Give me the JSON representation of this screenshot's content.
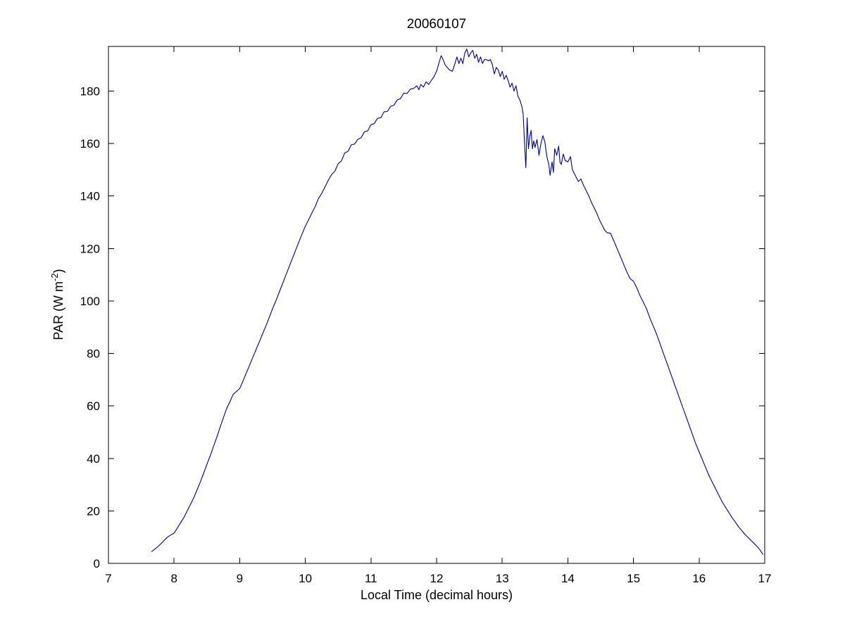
{
  "figure": {
    "title": "20060107",
    "background_color": "#ffffff",
    "axis_color": "#000000"
  },
  "chart_data": {
    "type": "line",
    "title": "20060107",
    "xlabel": "Local Time (decimal hours)",
    "ylabel": "PAR (W m^-2)",
    "ylabel_pre": "PAR (W m",
    "ylabel_sup": "-2",
    "ylabel_post": ")",
    "xlim": [
      7,
      17
    ],
    "ylim": [
      0,
      197
    ],
    "xticks": [
      7,
      8,
      9,
      10,
      11,
      12,
      13,
      14,
      15,
      16,
      17
    ],
    "yticks": [
      0,
      20,
      40,
      60,
      80,
      100,
      120,
      140,
      160,
      180
    ],
    "grid": false,
    "legend_position": "none",
    "line_color": "#00008B",
    "series": [
      {
        "name": "PAR",
        "points": [
          [
            7.66,
            4.5
          ],
          [
            7.7,
            5.3
          ],
          [
            7.75,
            6.3
          ],
          [
            7.8,
            7.5
          ],
          [
            7.85,
            8.8
          ],
          [
            7.9,
            10.0
          ],
          [
            7.95,
            10.8
          ],
          [
            8.0,
            11.5
          ],
          [
            8.05,
            13.5
          ],
          [
            8.1,
            15.5
          ],
          [
            8.15,
            17.5
          ],
          [
            8.2,
            20.0
          ],
          [
            8.25,
            22.5
          ],
          [
            8.3,
            25.0
          ],
          [
            8.35,
            28.0
          ],
          [
            8.4,
            31.0
          ],
          [
            8.45,
            34.3
          ],
          [
            8.5,
            37.7
          ],
          [
            8.55,
            41.0
          ],
          [
            8.6,
            44.5
          ],
          [
            8.65,
            48.0
          ],
          [
            8.7,
            51.7
          ],
          [
            8.75,
            55.4
          ],
          [
            8.8,
            59.0
          ],
          [
            8.85,
            61.5
          ],
          [
            8.9,
            64.4
          ],
          [
            8.95,
            65.5
          ],
          [
            9.0,
            66.6
          ],
          [
            9.05,
            69.5
          ],
          [
            9.1,
            72.5
          ],
          [
            9.15,
            75.5
          ],
          [
            9.2,
            78.5
          ],
          [
            9.25,
            81.5
          ],
          [
            9.3,
            84.5
          ],
          [
            9.35,
            87.5
          ],
          [
            9.4,
            90.5
          ],
          [
            9.45,
            93.7
          ],
          [
            9.5,
            97.0
          ],
          [
            9.55,
            100.0
          ],
          [
            9.6,
            103.2
          ],
          [
            9.65,
            106.4
          ],
          [
            9.7,
            109.6
          ],
          [
            9.75,
            112.8
          ],
          [
            9.8,
            116.0
          ],
          [
            9.85,
            119.2
          ],
          [
            9.9,
            122.4
          ],
          [
            9.95,
            125.5
          ],
          [
            10.0,
            128.5
          ],
          [
            10.05,
            131.0
          ],
          [
            10.1,
            133.5
          ],
          [
            10.15,
            136.0
          ],
          [
            10.2,
            139.0
          ],
          [
            10.25,
            141.0
          ],
          [
            10.3,
            143.5
          ],
          [
            10.35,
            146.0
          ],
          [
            10.4,
            148.2
          ],
          [
            10.45,
            149.4
          ],
          [
            10.5,
            152.3
          ],
          [
            10.55,
            153.4
          ],
          [
            10.6,
            156.4
          ],
          [
            10.65,
            157.0
          ],
          [
            10.7,
            159.5
          ],
          [
            10.75,
            159.8
          ],
          [
            10.8,
            161.6
          ],
          [
            10.85,
            162.2
          ],
          [
            10.9,
            164.5
          ],
          [
            10.95,
            164.8
          ],
          [
            11.0,
            167.2
          ],
          [
            11.05,
            167.6
          ],
          [
            11.1,
            169.6
          ],
          [
            11.15,
            169.8
          ],
          [
            11.2,
            172.1
          ],
          [
            11.25,
            172.2
          ],
          [
            11.3,
            174.2
          ],
          [
            11.35,
            174.6
          ],
          [
            11.4,
            176.6
          ],
          [
            11.45,
            177.1
          ],
          [
            11.5,
            179.2
          ],
          [
            11.55,
            179.1
          ],
          [
            11.6,
            180.7
          ],
          [
            11.65,
            181.0
          ],
          [
            11.7,
            182.0
          ],
          [
            11.73,
            180.5
          ],
          [
            11.76,
            182.5
          ],
          [
            11.8,
            181.5
          ],
          [
            11.84,
            183.5
          ],
          [
            11.88,
            182.5
          ],
          [
            11.92,
            184.0
          ],
          [
            11.96,
            185.5
          ],
          [
            12.0,
            187.5
          ],
          [
            12.04,
            191.0
          ],
          [
            12.07,
            193.5
          ],
          [
            12.1,
            192.0
          ],
          [
            12.13,
            190.0
          ],
          [
            12.16,
            189.0
          ],
          [
            12.2,
            188.0
          ],
          [
            12.24,
            187.5
          ],
          [
            12.28,
            190.5
          ],
          [
            12.31,
            193.0
          ],
          [
            12.34,
            190.5
          ],
          [
            12.37,
            192.5
          ],
          [
            12.4,
            190.5
          ],
          [
            12.43,
            194.5
          ],
          [
            12.46,
            196.0
          ],
          [
            12.49,
            193.0
          ],
          [
            12.52,
            194.5
          ],
          [
            12.55,
            195.5
          ],
          [
            12.58,
            192.5
          ],
          [
            12.61,
            194.0
          ],
          [
            12.64,
            191.0
          ],
          [
            12.67,
            193.0
          ],
          [
            12.7,
            190.5
          ],
          [
            12.73,
            192.0
          ],
          [
            12.76,
            192.0
          ],
          [
            12.79,
            191.5
          ],
          [
            12.82,
            192.0
          ],
          [
            12.85,
            190.0
          ],
          [
            12.88,
            186.5
          ],
          [
            12.91,
            189.0
          ],
          [
            12.94,
            188.0
          ],
          [
            12.97,
            185.5
          ],
          [
            13.0,
            187.5
          ],
          [
            13.03,
            184.5
          ],
          [
            13.06,
            186.0
          ],
          [
            13.09,
            184.0
          ],
          [
            13.12,
            181.5
          ],
          [
            13.15,
            183.0
          ],
          [
            13.18,
            180.0
          ],
          [
            13.21,
            182.0
          ],
          [
            13.24,
            178.0
          ],
          [
            13.27,
            176.5
          ],
          [
            13.3,
            174.0
          ],
          [
            13.32,
            171.0
          ],
          [
            13.34,
            160.0
          ],
          [
            13.36,
            150.8
          ],
          [
            13.38,
            169.8
          ],
          [
            13.4,
            158.0
          ],
          [
            13.42,
            162.6
          ],
          [
            13.44,
            165.0
          ],
          [
            13.46,
            158.0
          ],
          [
            13.48,
            161.0
          ],
          [
            13.5,
            158.5
          ],
          [
            13.53,
            161.5
          ],
          [
            13.56,
            155.5
          ],
          [
            13.59,
            160.0
          ],
          [
            13.62,
            163.0
          ],
          [
            13.65,
            160.5
          ],
          [
            13.68,
            155.0
          ],
          [
            13.71,
            152.0
          ],
          [
            13.73,
            147.9
          ],
          [
            13.76,
            153.0
          ],
          [
            13.78,
            149.0
          ],
          [
            13.8,
            158.0
          ],
          [
            13.83,
            155.5
          ],
          [
            13.86,
            159.0
          ],
          [
            13.88,
            153.0
          ],
          [
            13.9,
            152.0
          ],
          [
            13.93,
            156.0
          ],
          [
            13.96,
            153.5
          ],
          [
            14.0,
            153.0
          ],
          [
            14.04,
            155.0
          ],
          [
            14.07,
            150.0
          ],
          [
            14.1,
            148.5
          ],
          [
            14.13,
            147.0
          ],
          [
            14.16,
            145.5
          ],
          [
            14.2,
            146.5
          ],
          [
            14.24,
            144.0
          ],
          [
            14.28,
            142.0
          ],
          [
            14.32,
            140.0
          ],
          [
            14.36,
            137.5
          ],
          [
            14.4,
            135.5
          ],
          [
            14.44,
            133.5
          ],
          [
            14.48,
            131.0
          ],
          [
            14.52,
            129.0
          ],
          [
            14.56,
            127.0
          ],
          [
            14.6,
            126.0
          ],
          [
            14.65,
            125.8
          ],
          [
            14.7,
            123.0
          ],
          [
            14.75,
            120.0
          ],
          [
            14.8,
            117.0
          ],
          [
            14.85,
            114.0
          ],
          [
            14.9,
            111.0
          ],
          [
            14.95,
            108.5
          ],
          [
            15.0,
            107.5
          ],
          [
            15.05,
            105.0
          ],
          [
            15.1,
            102.0
          ],
          [
            15.15,
            99.5
          ],
          [
            15.2,
            97.0
          ],
          [
            15.25,
            93.5
          ],
          [
            15.3,
            90.5
          ],
          [
            15.35,
            87.5
          ],
          [
            15.4,
            84.0
          ],
          [
            15.45,
            80.5
          ],
          [
            15.5,
            77.0
          ],
          [
            15.55,
            73.5
          ],
          [
            15.6,
            70.0
          ],
          [
            15.65,
            66.5
          ],
          [
            15.7,
            63.0
          ],
          [
            15.75,
            59.5
          ],
          [
            15.8,
            56.0
          ],
          [
            15.85,
            52.5
          ],
          [
            15.9,
            49.0
          ],
          [
            15.95,
            45.5
          ],
          [
            16.0,
            42.5
          ],
          [
            16.05,
            39.5
          ],
          [
            16.1,
            36.5
          ],
          [
            16.15,
            33.5
          ],
          [
            16.2,
            31.0
          ],
          [
            16.25,
            28.5
          ],
          [
            16.3,
            26.0
          ],
          [
            16.35,
            23.5
          ],
          [
            16.4,
            21.5
          ],
          [
            16.45,
            19.5
          ],
          [
            16.5,
            17.5
          ],
          [
            16.55,
            15.8
          ],
          [
            16.6,
            14.0
          ],
          [
            16.65,
            12.5
          ],
          [
            16.7,
            11.0
          ],
          [
            16.75,
            9.8
          ],
          [
            16.8,
            8.5
          ],
          [
            16.85,
            7.3
          ],
          [
            16.9,
            6.0
          ],
          [
            16.93,
            5.0
          ],
          [
            16.97,
            3.5
          ]
        ]
      }
    ]
  }
}
